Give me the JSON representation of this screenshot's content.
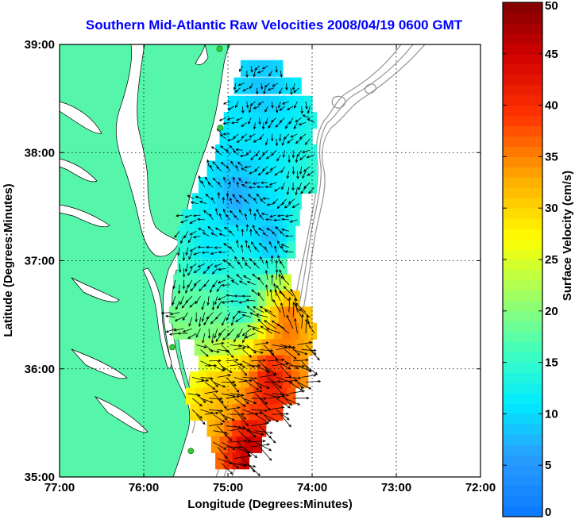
{
  "title": "Southern Mid-Atlantic Raw Velocities 2008/04/19 0600 GMT",
  "map": {
    "xlabel": "Longitude (Degrees:Minutes)",
    "ylabel": "Latitude (Degrees:Minutes)",
    "lon_range": [
      -77,
      -72
    ],
    "lat_range": [
      35,
      39
    ],
    "lon_ticks": [
      {
        "value": -77,
        "label": "77:00"
      },
      {
        "value": -76,
        "label": "76:00"
      },
      {
        "value": -75,
        "label": "75:00"
      },
      {
        "value": -74,
        "label": "74:00"
      },
      {
        "value": -73,
        "label": "73:00"
      },
      {
        "value": -72,
        "label": "72:00"
      }
    ],
    "lat_ticks": [
      {
        "value": 39,
        "label": "39:00"
      },
      {
        "value": 38,
        "label": "38:00"
      },
      {
        "value": 37,
        "label": "37:00"
      },
      {
        "value": 36,
        "label": "36:00"
      },
      {
        "value": 35,
        "label": "35:00"
      }
    ],
    "grid": "dotted",
    "colors": {
      "land": "#55f5aa",
      "bathymetry": "#9a9a9a",
      "site_marker": "#33cc33",
      "arrow": "#000000",
      "grid": "#000000"
    },
    "hf_radar_sites": [
      {
        "lon": -75.1,
        "lat": 38.96
      },
      {
        "lon": -75.09,
        "lat": 38.23
      },
      {
        "lon": -75.66,
        "lat": 36.2
      },
      {
        "lon": -75.44,
        "lat": 35.24
      }
    ],
    "velocity_regions": [
      {
        "lon": -74.6,
        "lat": 38.6,
        "speed": 8
      },
      {
        "lon": -74.9,
        "lat": 38.2,
        "speed": 11
      },
      {
        "lon": -74.9,
        "lat": 37.6,
        "speed": 5
      },
      {
        "lon": -74.5,
        "lat": 37.2,
        "speed": 6
      },
      {
        "lon": -75.2,
        "lat": 37.1,
        "speed": 10
      },
      {
        "lon": -74.85,
        "lat": 36.6,
        "speed": 12
      },
      {
        "lon": -75.3,
        "lat": 36.5,
        "speed": 18
      },
      {
        "lon": -74.3,
        "lat": 36.45,
        "speed": 38
      },
      {
        "lon": -74.5,
        "lat": 35.9,
        "speed": 45
      },
      {
        "lon": -75.1,
        "lat": 35.75,
        "speed": 32
      },
      {
        "lon": -74.75,
        "lat": 35.25,
        "speed": 48
      }
    ]
  },
  "colorbar": {
    "label": "Surface Velocity (cm/s)",
    "min": 0,
    "max": 50,
    "ticks": [
      {
        "value": 0,
        "label": "0"
      },
      {
        "value": 5,
        "label": "5"
      },
      {
        "value": 10,
        "label": "10"
      },
      {
        "value": 15,
        "label": "15"
      },
      {
        "value": 20,
        "label": "20"
      },
      {
        "value": 25,
        "label": "25"
      },
      {
        "value": 30,
        "label": "30"
      },
      {
        "value": 35,
        "label": "35"
      },
      {
        "value": 40,
        "label": "40"
      },
      {
        "value": 45,
        "label": "45"
      },
      {
        "value": 50,
        "label": "50"
      }
    ]
  }
}
